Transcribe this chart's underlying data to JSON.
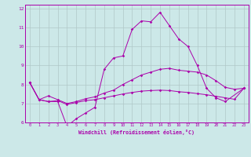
{
  "xlabel": "Windchill (Refroidissement éolien,°C)",
  "background_color": "#cce8e8",
  "line_color": "#aa00aa",
  "grid_color": "#b0c8c8",
  "xlim": [
    -0.5,
    23.5
  ],
  "ylim": [
    6,
    12.2
  ],
  "yticks": [
    6,
    7,
    8,
    9,
    10,
    11,
    12
  ],
  "xticks": [
    0,
    1,
    2,
    3,
    4,
    5,
    6,
    7,
    8,
    9,
    10,
    11,
    12,
    13,
    14,
    15,
    16,
    17,
    18,
    19,
    20,
    21,
    22,
    23
  ],
  "hours": [
    0,
    1,
    2,
    3,
    4,
    5,
    6,
    7,
    8,
    9,
    10,
    11,
    12,
    13,
    14,
    15,
    16,
    17,
    18,
    19,
    20,
    21,
    22,
    23
  ],
  "line1": [
    8.1,
    7.2,
    7.1,
    7.1,
    5.8,
    6.2,
    6.5,
    6.8,
    8.8,
    9.4,
    9.5,
    10.9,
    11.35,
    11.3,
    11.8,
    11.1,
    10.4,
    10.0,
    9.0,
    7.8,
    7.3,
    7.1,
    null,
    7.8
  ],
  "line2": [
    8.1,
    7.2,
    7.4,
    7.2,
    7.0,
    7.1,
    7.25,
    7.35,
    7.55,
    7.7,
    8.0,
    8.25,
    8.5,
    8.65,
    8.8,
    8.85,
    8.75,
    8.7,
    8.65,
    8.5,
    8.2,
    7.85,
    7.75,
    7.8
  ],
  "line3": [
    8.1,
    7.2,
    7.1,
    7.15,
    6.95,
    7.05,
    7.15,
    7.2,
    7.3,
    7.4,
    7.5,
    7.58,
    7.65,
    7.68,
    7.7,
    7.68,
    7.62,
    7.58,
    7.52,
    7.46,
    7.38,
    7.3,
    7.22,
    7.8
  ]
}
